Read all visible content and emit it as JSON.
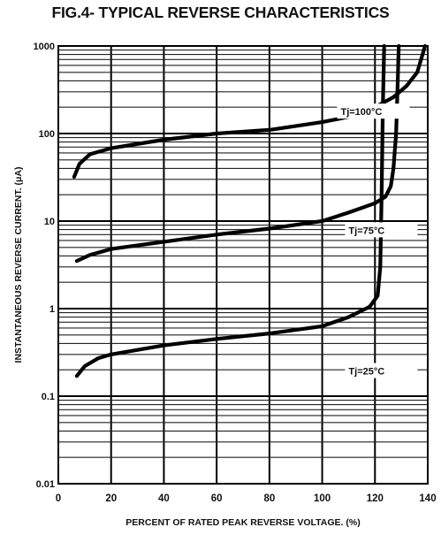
{
  "chart_data": {
    "type": "line",
    "title": "FIG.4- TYPICAL REVERSE CHARACTERISTICS",
    "xlabel": "PERCENT OF RATED PEAK REVERSE VOLTAGE. (%)",
    "ylabel": "INSTANTANEOUS REVERSE CURRENT. (μA)",
    "xlim": [
      0,
      140
    ],
    "ylim": [
      0.01,
      1000
    ],
    "yscale": "log",
    "grid": true,
    "xticks": [
      "0",
      "20",
      "40",
      "60",
      "80",
      "100",
      "120",
      "140"
    ],
    "yticks": [
      "0.01",
      "0.1",
      "1",
      "10",
      "100",
      "1000"
    ],
    "series": [
      {
        "name": "Tj=100°C",
        "label_at": [
          107,
          170
        ],
        "points": [
          [
            6,
            32
          ],
          [
            8,
            45
          ],
          [
            12,
            58
          ],
          [
            20,
            68
          ],
          [
            40,
            85
          ],
          [
            60,
            100
          ],
          [
            80,
            110
          ],
          [
            100,
            135
          ],
          [
            110,
            155
          ],
          [
            120,
            200
          ],
          [
            127,
            260
          ],
          [
            132,
            350
          ],
          [
            136,
            500
          ],
          [
            139,
            1000
          ]
        ]
      },
      {
        "name": "Tj=75°C",
        "label_at": [
          110,
          7.5
        ],
        "points": [
          [
            7,
            3.5
          ],
          [
            12,
            4.1
          ],
          [
            20,
            4.8
          ],
          [
            40,
            5.8
          ],
          [
            60,
            7.0
          ],
          [
            80,
            8.2
          ],
          [
            100,
            10
          ],
          [
            110,
            12.5
          ],
          [
            120,
            16
          ],
          [
            124,
            19
          ],
          [
            126,
            25
          ],
          [
            127,
            40
          ],
          [
            128,
            100
          ],
          [
            128.5,
            300
          ],
          [
            129,
            1000
          ]
        ]
      },
      {
        "name": "Tj=25°C",
        "label_at": [
          110,
          0.185
        ],
        "points": [
          [
            7,
            0.17
          ],
          [
            10,
            0.22
          ],
          [
            15,
            0.27
          ],
          [
            20,
            0.3
          ],
          [
            40,
            0.38
          ],
          [
            60,
            0.45
          ],
          [
            80,
            0.52
          ],
          [
            100,
            0.63
          ],
          [
            110,
            0.8
          ],
          [
            118,
            1.05
          ],
          [
            121,
            1.4
          ],
          [
            122,
            3
          ],
          [
            122.5,
            20
          ],
          [
            123,
            200
          ],
          [
            123.5,
            1000
          ]
        ]
      }
    ]
  }
}
